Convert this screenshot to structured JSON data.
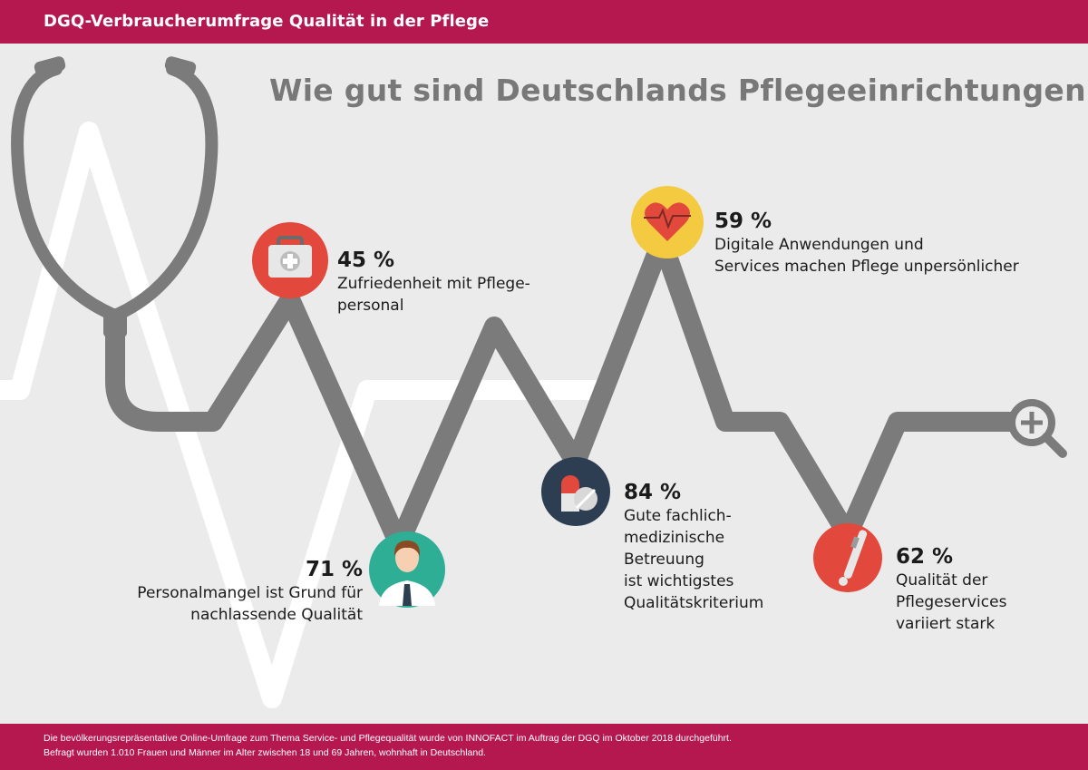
{
  "header": {
    "title": "DGQ-Verbraucherumfrage Qualität in der Pflege"
  },
  "headline": "Wie gut sind Deutschlands Pflegeeinrichtungen?",
  "stats": [
    {
      "percent": "45 %",
      "text": "Zufriedenheit mit Pflege-\npersonal",
      "icon": "first-aid-kit-icon"
    },
    {
      "percent": "71 %",
      "text": "Personalmangel ist Grund für\nnachlassende Qualität",
      "icon": "doctor-icon"
    },
    {
      "percent": "84 %",
      "text": "Gute fachlich-\nmedizinische\nBetreuung\nist wichtigstes\nQualitätskriterium",
      "icon": "pills-icon"
    },
    {
      "percent": "59 %",
      "text": "Digitale Anwendungen und\nServices machen Pflege unpersönlicher",
      "icon": "heart-pulse-icon"
    },
    {
      "percent": "62 %",
      "text": "Qualität der\nPflegeservices\nvariiert stark",
      "icon": "thermometer-icon"
    }
  ],
  "footer": {
    "line1": "Die bevölkerungsrepräsentative Online-Umfrage zum Thema Service- und Pflegequalität wurde von INNOFACT im Auftrag der DGQ im Oktober 2018 durchgeführt.",
    "line2": "Befragt wurden 1.010 Frauen und Männer im Alter zwischen 18 und 69 Jahren, wohnhaft in Deutschland."
  },
  "colors": {
    "brand": "#b5174f",
    "line": "#7b7b7b",
    "red": "#e2483c",
    "teal": "#2fae96",
    "navy": "#2e3e52",
    "yellow": "#f4ca41"
  }
}
